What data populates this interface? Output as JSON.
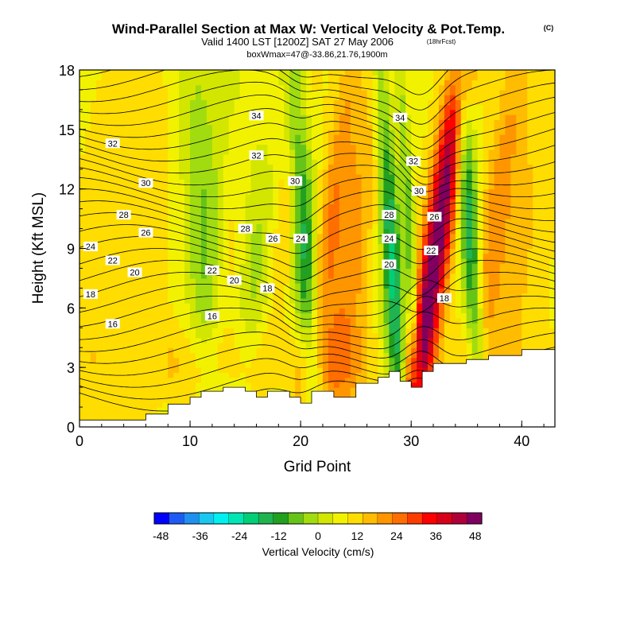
{
  "chart_data": {
    "type": "heatmap",
    "title": "Wind-Parallel Section at Max W: Vertical Velocity & Pot.Temp.",
    "title_mark": "(C)",
    "subtitle": "Valid 1400 LST [1200Z] SAT 27 May 2006",
    "subtitle_note": "(18hrFcst)",
    "subtitle2": "boxWmax=47@-33.86,21.76,1900m",
    "xlabel": "Grid Point",
    "ylabel": "Height (Kft MSL)",
    "xlim": [
      0,
      43
    ],
    "ylim": [
      0,
      18
    ],
    "xticks": [
      0,
      10,
      20,
      30,
      40
    ],
    "yticks": [
      0,
      3,
      6,
      9,
      12,
      15,
      18
    ],
    "colorbar": {
      "label": "Vertical Velocity (cm/s)",
      "ticks": [
        -48,
        -36,
        -24,
        -12,
        0,
        12,
        24,
        36,
        48
      ],
      "range": [
        -50,
        50
      ],
      "colors": [
        "#0000ff",
        "#1e5bf5",
        "#1f90f0",
        "#18c8f0",
        "#00f0f0",
        "#00e6b4",
        "#00cf78",
        "#20b450",
        "#22a020",
        "#66c419",
        "#a0dc10",
        "#d2e600",
        "#f2f200",
        "#ffdd00",
        "#ffbc00",
        "#ff9600",
        "#ff6e00",
        "#ff3c00",
        "#ff0000",
        "#d80018",
        "#b0003a",
        "#800060"
      ]
    },
    "w_features": [
      {
        "x": 2,
        "w": 3,
        "amp": 4
      },
      {
        "x": 6,
        "w": 3,
        "amp": 2
      },
      {
        "x": 11.5,
        "w": 1.8,
        "amp": -14
      },
      {
        "x": 13.5,
        "w": 1.5,
        "amp": 8
      },
      {
        "x": 16,
        "w": 2.2,
        "amp": -10
      },
      {
        "x": 18,
        "w": 1.3,
        "amp": 8
      },
      {
        "x": 20.5,
        "w": 1.1,
        "amp": -24
      },
      {
        "x": 22,
        "w": 1.2,
        "amp": 12
      },
      {
        "x": 24.5,
        "w": 2.2,
        "amp": 14
      },
      {
        "x": 26.5,
        "w": 1.2,
        "amp": -4
      },
      {
        "x": 28.3,
        "w": 0.9,
        "amp": -28
      },
      {
        "x": 30,
        "w": 0.55,
        "amp": -16
      },
      {
        "x": 32,
        "w": 1.3,
        "amp": 44
      },
      {
        "x": 35.5,
        "w": 0.9,
        "amp": -26
      },
      {
        "x": 37,
        "w": 1.5,
        "amp": 14
      },
      {
        "x": 40,
        "w": 2.0,
        "amp": 6
      }
    ],
    "terrain": [
      [
        0,
        0.35
      ],
      [
        6,
        0.35
      ],
      [
        6,
        0.65
      ],
      [
        8,
        0.65
      ],
      [
        8,
        1.15
      ],
      [
        10,
        1.15
      ],
      [
        10,
        1.5
      ],
      [
        11,
        1.5
      ],
      [
        11,
        1.8
      ],
      [
        13,
        1.8
      ],
      [
        13,
        2.0
      ],
      [
        15,
        2.0
      ],
      [
        15,
        1.8
      ],
      [
        16,
        1.8
      ],
      [
        16,
        1.5
      ],
      [
        17,
        1.5
      ],
      [
        17,
        1.8
      ],
      [
        19,
        1.8
      ],
      [
        19,
        1.5
      ],
      [
        20,
        1.5
      ],
      [
        20,
        1.2
      ],
      [
        21,
        1.2
      ],
      [
        21,
        1.8
      ],
      [
        23,
        1.8
      ],
      [
        23,
        1.5
      ],
      [
        25,
        1.5
      ],
      [
        25,
        2.2
      ],
      [
        27,
        2.2
      ],
      [
        27,
        2.5
      ],
      [
        28,
        2.5
      ],
      [
        28,
        2.8
      ],
      [
        29,
        2.8
      ],
      [
        29,
        2.3
      ],
      [
        30,
        2.3
      ],
      [
        30,
        2.0
      ],
      [
        31,
        2.0
      ],
      [
        31,
        2.8
      ],
      [
        32,
        2.8
      ],
      [
        32,
        3.2
      ],
      [
        35,
        3.2
      ],
      [
        35,
        3.4
      ],
      [
        37,
        3.4
      ],
      [
        37,
        3.6
      ],
      [
        40,
        3.6
      ],
      [
        40,
        3.9
      ],
      [
        43,
        3.9
      ],
      [
        43,
        0
      ]
    ],
    "contour_labels": [
      {
        "text": "34",
        "x": 16,
        "y": 15.7
      },
      {
        "text": "34",
        "x": 29,
        "y": 15.6
      },
      {
        "text": "32",
        "x": 3,
        "y": 14.3
      },
      {
        "text": "32",
        "x": 16,
        "y": 13.7
      },
      {
        "text": "32",
        "x": 30.2,
        "y": 13.4
      },
      {
        "text": "30",
        "x": 6,
        "y": 12.3
      },
      {
        "text": "30",
        "x": 19.5,
        "y": 12.4
      },
      {
        "text": "30",
        "x": 30.7,
        "y": 11.9
      },
      {
        "text": "28",
        "x": 4,
        "y": 10.7
      },
      {
        "text": "28",
        "x": 15,
        "y": 10.0
      },
      {
        "text": "28",
        "x": 28,
        "y": 10.7
      },
      {
        "text": "26",
        "x": 6,
        "y": 9.8
      },
      {
        "text": "26",
        "x": 17.5,
        "y": 9.5
      },
      {
        "text": "26",
        "x": 32.1,
        "y": 10.6
      },
      {
        "text": "24",
        "x": 1,
        "y": 9.1
      },
      {
        "text": "24",
        "x": 20,
        "y": 9.5
      },
      {
        "text": "24",
        "x": 28,
        "y": 9.5
      },
      {
        "text": "22",
        "x": 3,
        "y": 8.4
      },
      {
        "text": "22",
        "x": 12,
        "y": 7.9
      },
      {
        "text": "22",
        "x": 31.8,
        "y": 8.9
      },
      {
        "text": "20",
        "x": 5,
        "y": 7.8
      },
      {
        "text": "20",
        "x": 14,
        "y": 7.4
      },
      {
        "text": "20",
        "x": 28,
        "y": 8.2
      },
      {
        "text": "18",
        "x": 1,
        "y": 6.7
      },
      {
        "text": "18",
        "x": 17,
        "y": 7.0
      },
      {
        "text": "18",
        "x": 33,
        "y": 6.5
      },
      {
        "text": "16",
        "x": 3,
        "y": 5.2
      },
      {
        "text": "16",
        "x": 12,
        "y": 5.6
      }
    ]
  }
}
